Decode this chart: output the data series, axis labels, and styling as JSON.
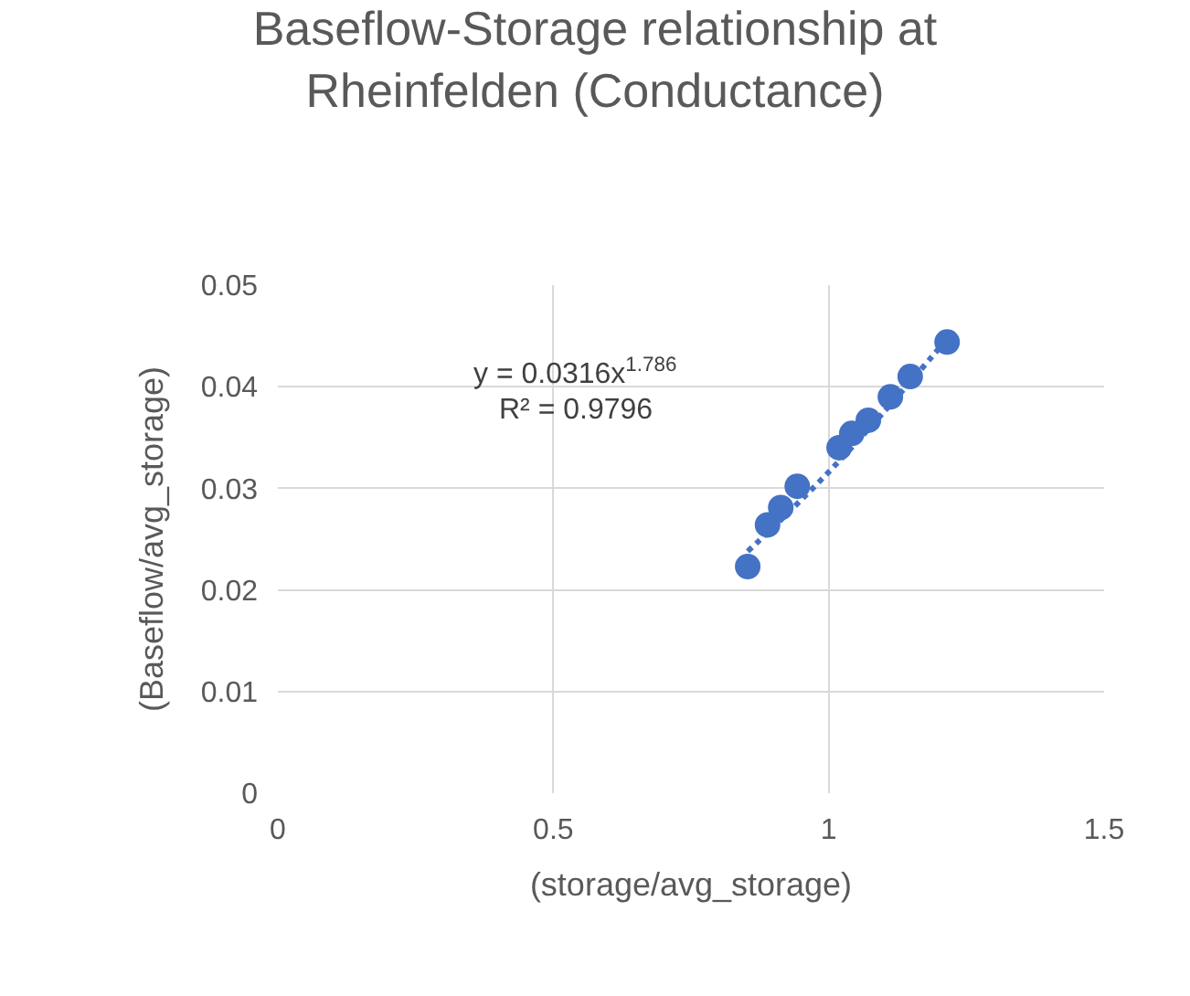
{
  "chart_data": {
    "type": "scatter",
    "title": "Baseflow-Storage relationship at Rheinfelden (Conductance)",
    "xlabel": "(storage/avg_storage)",
    "ylabel": "(Baseflow/avg_storage)",
    "series": [
      {
        "color": "#4472c4",
        "marker": "circle",
        "x": [
          0.853,
          0.889,
          0.913,
          0.943,
          1.019,
          1.042,
          1.072,
          1.112,
          1.148,
          1.215
        ],
        "values": [
          0.0223,
          0.0264,
          0.0281,
          0.0302,
          0.034,
          0.0354,
          0.0367,
          0.039,
          0.041,
          0.0444
        ]
      },
      {
        "type": "line",
        "color": "#4472c4",
        "line_style": "dotted",
        "marker": "none",
        "x": [
          0.853,
          0.9,
          1.0,
          1.1,
          1.215
        ],
        "values": [
          0.0238,
          0.0262,
          0.0316,
          0.0375,
          0.0447
        ]
      }
    ],
    "annotations": [
      "y = 0.0316x$^{1.786}$",
      "R² = 0.9796"
    ],
    "xlim": [
      0,
      1.5
    ],
    "xticks": [
      0,
      0.5,
      1,
      1.5
    ],
    "ylim": [
      0,
      0.05
    ],
    "yticks": [
      0,
      0.01,
      0.02,
      0.03,
      0.04,
      0.05
    ],
    "grid": true,
    "legend": false
  }
}
